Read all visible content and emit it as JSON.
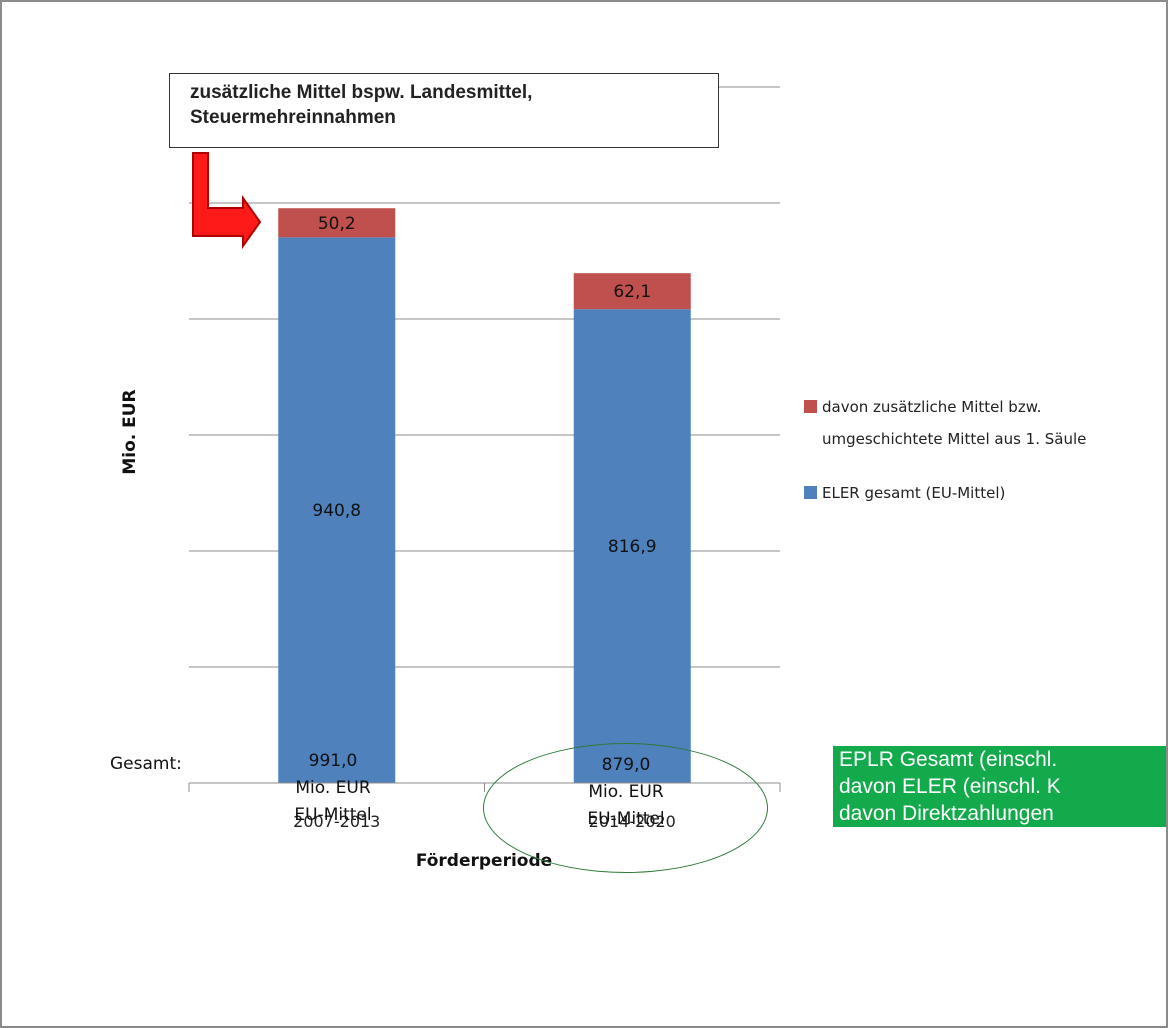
{
  "chart_data": {
    "type": "bar",
    "stacked": true,
    "categories": [
      "2007-2013",
      "2014-2020"
    ],
    "series": [
      {
        "name": "ELER gesamt (EU-Mittel)",
        "color": "#4f81bd",
        "values": [
          940.8,
          816.9
        ],
        "labels": [
          "940,8",
          "816,9"
        ]
      },
      {
        "name": "davon zusätzliche Mittel bzw. umgeschichtete Mittel aus 1. Säule",
        "color": "#c0504d",
        "values": [
          50.2,
          62.1
        ],
        "labels": [
          "50,2",
          "62,1"
        ]
      }
    ],
    "legend_lines": [
      [
        "davon zusätzliche Mittel bzw.",
        "umgeschichtete Mittel aus 1. Säule"
      ],
      [
        "ELER gesamt (EU-Mittel)"
      ]
    ],
    "xlabel": "Förderperiode",
    "ylabel": "Mio. EUR",
    "ylim": [
      0,
      1200
    ],
    "grid": true,
    "legend_position": "right"
  },
  "callout": {
    "line1": "zusätzliche Mittel bspw. Landesmittel,",
    "line2": "Steuermehreinnahmen"
  },
  "totals": {
    "label": "Gesamt:",
    "period1": {
      "value": "991,0",
      "unit": "Mio. EUR",
      "source": "EU-Mittel"
    },
    "period2": {
      "value": "879,0",
      "unit": "Mio. EUR",
      "source": "EU-Mittel"
    }
  },
  "green_box": {
    "line1": "EPLR Gesamt (einschl.",
    "line2": "davon ELER (einschl. K",
    "line3": "davon Direktzahlungen"
  }
}
